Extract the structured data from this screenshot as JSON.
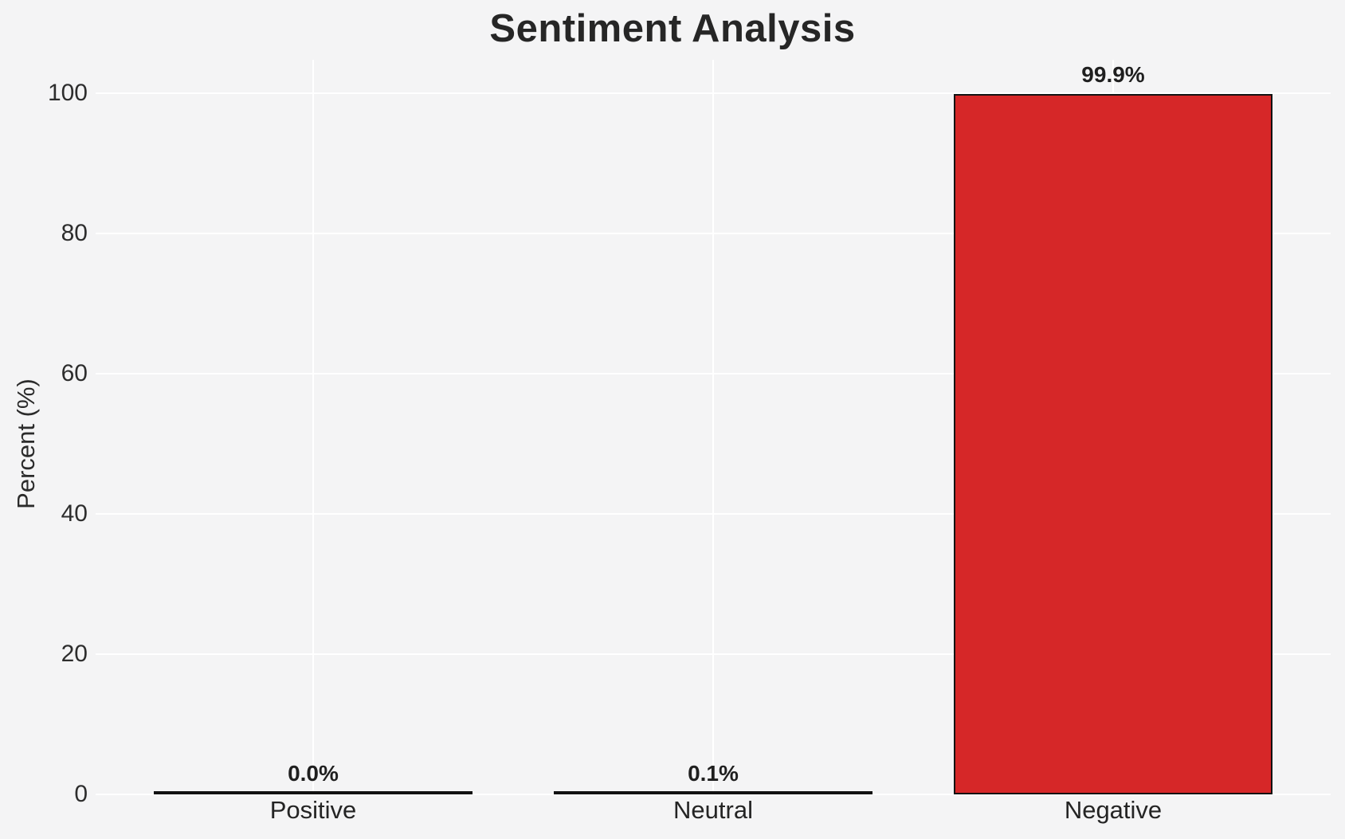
{
  "title": "Sentiment Analysis",
  "chart_data": {
    "type": "bar",
    "title": "Sentiment Analysis",
    "categories": [
      "Positive",
      "Neutral",
      "Negative"
    ],
    "values": [
      0.0,
      0.1,
      99.9
    ],
    "value_labels": [
      "0.0%",
      "0.1%",
      "99.9%"
    ],
    "xlabel": "",
    "ylabel": "Percent (%)",
    "ylim": [
      0,
      104.8
    ],
    "yticks": [
      0,
      20,
      40,
      60,
      80,
      100
    ],
    "grid": true,
    "legend": false,
    "bar_color": "#d62728",
    "bar_edge_color": "#121212",
    "background_color": "#f4f4f5",
    "gridline_color": "#ffffff"
  }
}
